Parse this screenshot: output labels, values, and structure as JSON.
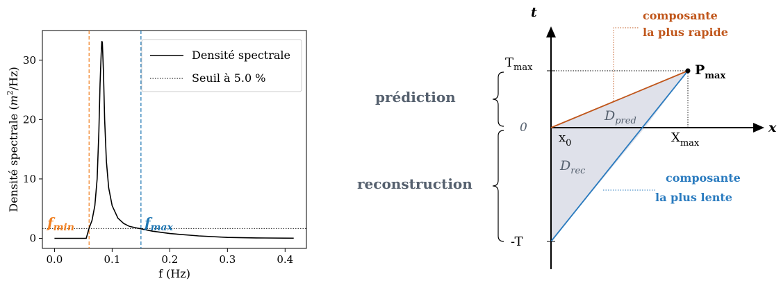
{
  "chart_data": {
    "type": "line",
    "xlabel": "f (Hz)",
    "ylabel": "Densité spectrale (m²/Hz)",
    "xlim": [
      -0.021,
      0.437
    ],
    "ylim": [
      -1.7,
      35
    ],
    "xticks": [
      "0.0",
      "0.1",
      "0.2",
      "0.3",
      "0.4"
    ],
    "yticks": [
      "0",
      "10",
      "20",
      "30"
    ],
    "legend_position": "top-right",
    "series": [
      {
        "name": "Densité spectrale",
        "points": [
          [
            0.0,
            0.0
          ],
          [
            0.05,
            0.0
          ],
          [
            0.055,
            0.0
          ],
          [
            0.06,
            1.7
          ],
          [
            0.065,
            3.0
          ],
          [
            0.07,
            5.5
          ],
          [
            0.074,
            10.0
          ],
          [
            0.077,
            18.0
          ],
          [
            0.079,
            26.0
          ],
          [
            0.081,
            31.0
          ],
          [
            0.082,
            33.2
          ],
          [
            0.083,
            33.0
          ],
          [
            0.085,
            28.0
          ],
          [
            0.087,
            20.0
          ],
          [
            0.09,
            13.0
          ],
          [
            0.094,
            8.5
          ],
          [
            0.1,
            5.5
          ],
          [
            0.11,
            3.4
          ],
          [
            0.12,
            2.5
          ],
          [
            0.13,
            2.0
          ],
          [
            0.14,
            1.8
          ],
          [
            0.15,
            1.6
          ],
          [
            0.17,
            1.2
          ],
          [
            0.2,
            0.8
          ],
          [
            0.25,
            0.4
          ],
          [
            0.3,
            0.15
          ],
          [
            0.35,
            0.06
          ],
          [
            0.415,
            0.02
          ]
        ]
      },
      {
        "name": "Seuil à 5.0 %",
        "y": 1.65
      }
    ],
    "markers": [
      {
        "name": "f_min",
        "x": 0.06,
        "color": "#f07f20"
      },
      {
        "name": "f_max",
        "x": 0.15,
        "color": "#1f77b4"
      }
    ]
  },
  "left": {
    "ylabel_main": "Densité spectrale (",
    "ylabel_unit_m": "m",
    "ylabel_unit_exp": "2",
    "ylabel_unit_rest": "/Hz)",
    "xlabel": "f (Hz)",
    "legend": {
      "line": "Densité spectrale",
      "threshold": "Seuil à 5.0 %"
    },
    "fmin": {
      "f": "f",
      "sub": "min"
    },
    "fmax": {
      "f": "f",
      "sub": "max"
    }
  },
  "diagram": {
    "axis_t": "t",
    "axis_x": "x",
    "tmax_main": "T",
    "tmax_sub": "max",
    "zero": "0",
    "neg_t": "-T",
    "x0_main": "x",
    "x0_sub": "0",
    "xmax_main": "X",
    "xmax_sub": "max",
    "pmax_main": "P",
    "pmax_sub": "max",
    "dpred_main": "D",
    "dpred_sub": "pred",
    "drec_main": "D",
    "drec_sub": "rec",
    "prediction": "prédiction",
    "reconstruction": "reconstruction",
    "fast_line1": "composante",
    "fast_line2": "la plus rapide",
    "slow_line1": "composante",
    "slow_line2": "la plus lente",
    "colors": {
      "fast": "#c0561b",
      "slow": "#2a7bbf",
      "label": "#55606e",
      "fill": "#dfe1ea"
    }
  }
}
